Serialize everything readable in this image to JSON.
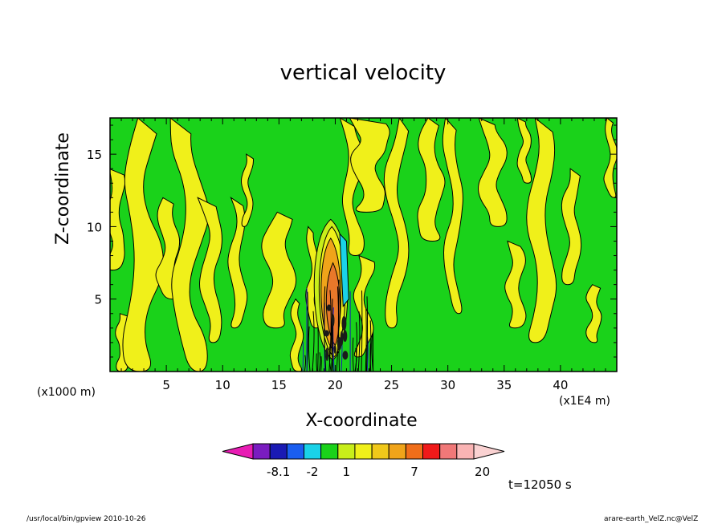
{
  "chart_data": {
    "type": "heatmap",
    "title": "vertical velocity",
    "xlabel": "X-coordinate",
    "ylabel": "Z-coordinate",
    "x_unit_note": "(x1000 m)",
    "x_multiplier_note": "(x1E4 m)",
    "xlim": [
      0,
      45
    ],
    "ylim": [
      0,
      17.5
    ],
    "xticks": [
      5,
      10,
      15,
      20,
      25,
      30,
      35,
      40
    ],
    "yticks": [
      5,
      10,
      15
    ],
    "colorbar": {
      "colors": [
        "#e81cb4",
        "#7a1cc0",
        "#1a1ab4",
        "#1a5ef0",
        "#1ad2e8",
        "#1ad21a",
        "#c8ee1a",
        "#f0f01a",
        "#f0c81a",
        "#f0a41a",
        "#f06e1a",
        "#f01a1a",
        "#f07878",
        "#fab4b4",
        "#fad2d2"
      ],
      "labels": [
        {
          "text": "-8.1",
          "index": 2
        },
        {
          "text": "-2",
          "index": 4
        },
        {
          "text": "1",
          "index": 6
        },
        {
          "text": "7",
          "index": 10
        },
        {
          "text": "20",
          "index": 14
        }
      ]
    },
    "time_label": "t=12050 s"
  },
  "footer": {
    "left": "/usr/local/bin/gpview   2010-10-26",
    "right": "arare-earth_VelZ.nc@VelZ"
  },
  "colors": {
    "green": "#1ad21a",
    "yellow": "#f0f01a",
    "light_green": "#c8ee1a",
    "orange": "#f0a41a",
    "dark_orange": "#e8782a",
    "cyan": "#1ad2e8",
    "blue": "#1a1ab4"
  }
}
